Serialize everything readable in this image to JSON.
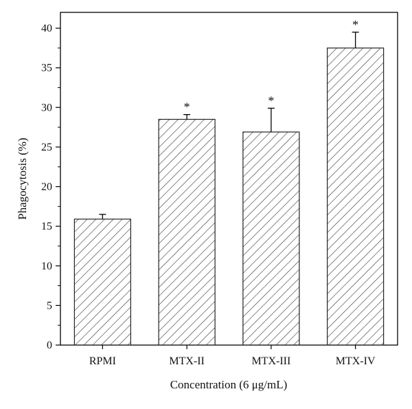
{
  "chart_data": {
    "type": "bar",
    "title": "",
    "xlabel": "Concentration (6 μg/mL)",
    "ylabel": "Phagocytosis (%)",
    "categories": [
      "RPMI",
      "MTX-II",
      "MTX-III",
      "MTX-IV"
    ],
    "values": [
      15.9,
      28.5,
      26.9,
      37.5
    ],
    "errors": [
      0.6,
      0.6,
      3.0,
      2.0
    ],
    "significance": [
      "",
      "*",
      "*",
      "*"
    ],
    "ylim": [
      0,
      42
    ],
    "yticks": [
      0,
      5,
      10,
      15,
      20,
      25,
      30,
      35,
      40
    ],
    "yticks_minor": [
      2.5,
      7.5,
      12.5,
      17.5,
      22.5,
      27.5,
      32.5,
      37.5
    ],
    "bar_fill": "hatched",
    "colors": {
      "bar_stroke": "#222222",
      "hatch": "#333333"
    }
  }
}
